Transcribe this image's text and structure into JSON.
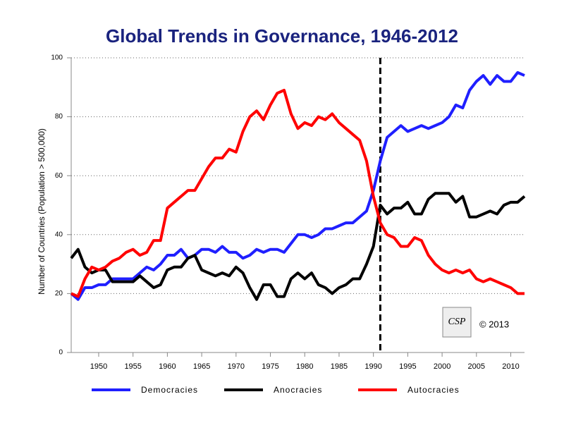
{
  "chart_data": {
    "type": "line",
    "title": "Global Trends in Governance, 1946-2012",
    "y_label": "Number of Countries (Population > 500,000)",
    "annotation": "© 2013",
    "logo": "CSP",
    "vline": 1991,
    "x": [
      1946,
      1947,
      1948,
      1949,
      1950,
      1951,
      1952,
      1953,
      1954,
      1955,
      1956,
      1957,
      1958,
      1959,
      1960,
      1961,
      1962,
      1963,
      1964,
      1965,
      1966,
      1967,
      1968,
      1969,
      1970,
      1971,
      1972,
      1973,
      1974,
      1975,
      1976,
      1977,
      1978,
      1979,
      1980,
      1981,
      1982,
      1983,
      1984,
      1985,
      1986,
      1987,
      1988,
      1989,
      1990,
      1991,
      1992,
      1993,
      1994,
      1995,
      1996,
      1997,
      1998,
      1999,
      2000,
      2001,
      2002,
      2003,
      2004,
      2005,
      2006,
      2007,
      2008,
      2009,
      2010,
      2011,
      2012
    ],
    "series": [
      {
        "name": "Democracies",
        "color": "#1f1fff",
        "values": [
          20,
          18,
          22,
          22,
          23,
          23,
          25,
          25,
          25,
          25,
          27,
          29,
          28,
          30,
          33,
          33,
          35,
          32,
          33,
          35,
          35,
          34,
          36,
          34,
          34,
          32,
          33,
          35,
          34,
          35,
          35,
          34,
          37,
          40,
          40,
          39,
          40,
          42,
          42,
          43,
          44,
          44,
          46,
          48,
          55,
          65,
          73,
          75,
          77,
          75,
          76,
          77,
          76,
          77,
          78,
          80,
          84,
          83,
          89,
          92,
          94,
          91,
          94,
          92,
          92,
          95,
          94
        ]
      },
      {
        "name": "Anocracies",
        "color": "#000000",
        "values": [
          32,
          35,
          29,
          27,
          28,
          28,
          24,
          24,
          24,
          24,
          26,
          24,
          22,
          23,
          28,
          29,
          29,
          32,
          33,
          28,
          27,
          26,
          27,
          26,
          29,
          27,
          22,
          18,
          23,
          23,
          19,
          19,
          25,
          27,
          25,
          27,
          23,
          22,
          20,
          22,
          23,
          25,
          25,
          30,
          36,
          50,
          47,
          49,
          49,
          51,
          47,
          47,
          52,
          54,
          54,
          54,
          51,
          53,
          46,
          46,
          47,
          48,
          47,
          50,
          51,
          51,
          53
        ]
      },
      {
        "name": "Autocracies",
        "color": "#ff0000",
        "values": [
          20,
          19,
          25,
          29,
          28,
          29,
          31,
          32,
          34,
          35,
          33,
          34,
          38,
          38,
          49,
          51,
          53,
          55,
          55,
          59,
          63,
          66,
          66,
          69,
          68,
          75,
          80,
          82,
          79,
          84,
          88,
          89,
          81,
          76,
          78,
          77,
          80,
          79,
          81,
          78,
          76,
          74,
          72,
          65,
          53,
          44,
          40,
          39,
          36,
          36,
          39,
          38,
          33,
          30,
          28,
          27,
          28,
          27,
          28,
          25,
          24,
          25,
          24,
          23,
          22,
          20,
          20
        ]
      }
    ],
    "xlim": [
      1946,
      2012
    ],
    "xticks": [
      1950,
      1955,
      1960,
      1965,
      1970,
      1975,
      1980,
      1985,
      1990,
      1995,
      2000,
      2005,
      2010
    ],
    "ylim": [
      0,
      100
    ],
    "yticks": [
      0,
      20,
      40,
      60,
      80,
      100
    ],
    "grid": true
  }
}
